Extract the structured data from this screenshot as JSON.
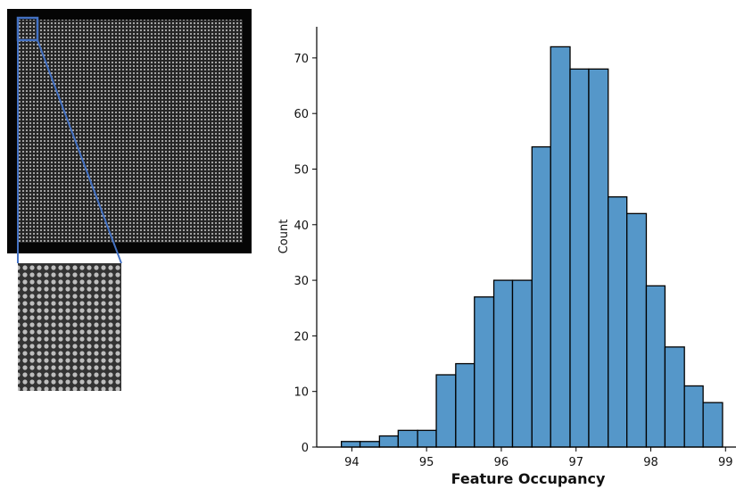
{
  "chart_data": {
    "type": "histogram",
    "xlabel": "Feature Occupancy",
    "ylabel": "Count",
    "bins": [
      93.86,
      94.11,
      94.37,
      94.62,
      94.88,
      95.13,
      95.39,
      95.64,
      95.9,
      96.15,
      96.41,
      96.66,
      96.92,
      97.17,
      97.43,
      97.68,
      97.94,
      98.19,
      98.45,
      98.7,
      98.96
    ],
    "values": [
      1,
      1,
      2,
      3,
      3,
      13,
      15,
      27,
      30,
      30,
      54,
      72,
      68,
      68,
      45,
      42,
      29,
      18,
      11,
      8
    ],
    "color": "#5597c9",
    "edgecolor": "#000000",
    "xlim": [
      93.53,
      99.14
    ],
    "ylim": [
      0,
      75.6
    ],
    "xticks": [
      94,
      95,
      96,
      97,
      98,
      99
    ],
    "yticks": [
      0,
      10,
      20,
      30,
      40,
      50,
      60,
      70
    ],
    "grid": false
  }
}
